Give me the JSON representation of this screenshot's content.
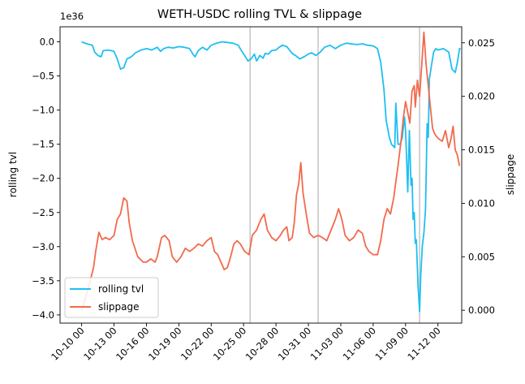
{
  "chart_data": {
    "type": "line",
    "title": "WETH-USDC rolling TVL & slippage",
    "x_tick_labels": [
      "10-10 00",
      "10-13 00",
      "10-16 00",
      "10-19 00",
      "10-22 00",
      "10-25 00",
      "10-28 00",
      "10-31 00",
      "11-03 00",
      "11-06 00",
      "11-09 00",
      "11-12 00"
    ],
    "x_tick_days": [
      0,
      3,
      6,
      9,
      12,
      15,
      18,
      21,
      24,
      27,
      30,
      33
    ],
    "xlim_days": [
      -2.0,
      35.2
    ],
    "vertical_lines_days": [
      15.6,
      21.9,
      31.3
    ],
    "left_axis": {
      "label": "rolling tvl",
      "offset_text": "1e36",
      "ylim": [
        -4.12,
        0.22
      ],
      "ticks": [
        0.0,
        -0.5,
        -1.0,
        -1.5,
        -2.0,
        -2.5,
        -3.0,
        -3.5,
        -4.0
      ],
      "tick_labels": [
        "0.0",
        "−0.5",
        "−1.0",
        "−1.5",
        "−2.0",
        "−2.5",
        "−3.0",
        "−3.5",
        "−4.0"
      ]
    },
    "right_axis": {
      "label": "slippage",
      "ylim": [
        -0.0012,
        0.0265
      ],
      "ticks": [
        0.0,
        0.005,
        0.01,
        0.015,
        0.02,
        0.025
      ],
      "tick_labels": [
        "0.000",
        "0.005",
        "0.010",
        "0.015",
        "0.020",
        "0.025"
      ]
    },
    "legend_position": "lower left",
    "series": [
      {
        "name": "rolling tvl",
        "axis": "left",
        "color": "#1ebff2",
        "points": [
          [
            0,
            0
          ],
          [
            0.5,
            -0.03
          ],
          [
            1,
            -0.05
          ],
          [
            1.2,
            -0.15
          ],
          [
            1.5,
            -0.2
          ],
          [
            1.8,
            -0.22
          ],
          [
            2,
            -0.13
          ],
          [
            2.5,
            -0.12
          ],
          [
            3,
            -0.14
          ],
          [
            3.3,
            -0.25
          ],
          [
            3.6,
            -0.4
          ],
          [
            3.9,
            -0.38
          ],
          [
            4.2,
            -0.25
          ],
          [
            4.6,
            -0.22
          ],
          [
            5,
            -0.16
          ],
          [
            5.5,
            -0.12
          ],
          [
            6,
            -0.1
          ],
          [
            6.5,
            -0.12
          ],
          [
            7,
            -0.08
          ],
          [
            7.3,
            -0.14
          ],
          [
            7.6,
            -0.1
          ],
          [
            8,
            -0.08
          ],
          [
            8.5,
            -0.09
          ],
          [
            9,
            -0.07
          ],
          [
            9.5,
            -0.08
          ],
          [
            10,
            -0.1
          ],
          [
            10.3,
            -0.18
          ],
          [
            10.5,
            -0.22
          ],
          [
            10.8,
            -0.13
          ],
          [
            11.2,
            -0.08
          ],
          [
            11.6,
            -0.12
          ],
          [
            12,
            -0.05
          ],
          [
            12.5,
            -0.02
          ],
          [
            13,
            0
          ],
          [
            13.5,
            -0.01
          ],
          [
            14,
            -0.02
          ],
          [
            14.5,
            -0.05
          ],
          [
            14.8,
            -0.13
          ],
          [
            15.1,
            -0.2
          ],
          [
            15.4,
            -0.28
          ],
          [
            15.7,
            -0.25
          ],
          [
            16,
            -0.18
          ],
          [
            16.2,
            -0.28
          ],
          [
            16.5,
            -0.2
          ],
          [
            16.8,
            -0.24
          ],
          [
            17,
            -0.17
          ],
          [
            17.3,
            -0.18
          ],
          [
            17.6,
            -0.13
          ],
          [
            18,
            -0.12
          ],
          [
            18.3,
            -0.08
          ],
          [
            18.6,
            -0.05
          ],
          [
            19,
            -0.07
          ],
          [
            19.5,
            -0.17
          ],
          [
            19.8,
            -0.2
          ],
          [
            20.2,
            -0.25
          ],
          [
            20.6,
            -0.22
          ],
          [
            21,
            -0.18
          ],
          [
            21.3,
            -0.16
          ],
          [
            21.7,
            -0.2
          ],
          [
            22.1,
            -0.15
          ],
          [
            22.5,
            -0.08
          ],
          [
            23,
            -0.05
          ],
          [
            23.5,
            -0.1
          ],
          [
            24,
            -0.05
          ],
          [
            24.5,
            -0.02
          ],
          [
            25,
            -0.03
          ],
          [
            25.5,
            -0.04
          ],
          [
            26,
            -0.03
          ],
          [
            26.5,
            -0.05
          ],
          [
            27,
            -0.06
          ],
          [
            27.4,
            -0.1
          ],
          [
            27.7,
            -0.3
          ],
          [
            28,
            -0.7
          ],
          [
            28.2,
            -1.15
          ],
          [
            28.5,
            -1.4
          ],
          [
            28.7,
            -1.5
          ],
          [
            29,
            -1.55
          ],
          [
            29.1,
            -0.9
          ],
          [
            29.3,
            -1.5
          ],
          [
            29.5,
            -1.5
          ],
          [
            29.7,
            -1.4
          ],
          [
            29.9,
            -1.1
          ],
          [
            30,
            -1.3
          ],
          [
            30.1,
            -1.7
          ],
          [
            30.2,
            -2.2
          ],
          [
            30.35,
            -1.3
          ],
          [
            30.5,
            -2.1
          ],
          [
            30.6,
            -2.0
          ],
          [
            30.7,
            -2.6
          ],
          [
            30.8,
            -2.5
          ],
          [
            30.9,
            -2.95
          ],
          [
            31.0,
            -2.9
          ],
          [
            31.15,
            -3.55
          ],
          [
            31.3,
            -3.95
          ],
          [
            31.4,
            -3.45
          ],
          [
            31.55,
            -3.0
          ],
          [
            31.7,
            -2.8
          ],
          [
            31.85,
            -2.45
          ],
          [
            32,
            -1.2
          ],
          [
            32.1,
            -1.4
          ],
          [
            32.2,
            -0.55
          ],
          [
            32.4,
            -0.35
          ],
          [
            32.6,
            -0.15
          ],
          [
            32.8,
            -0.1
          ],
          [
            33,
            -0.12
          ],
          [
            33.5,
            -0.1
          ],
          [
            34,
            -0.15
          ],
          [
            34.3,
            -0.4
          ],
          [
            34.6,
            -0.45
          ],
          [
            34.8,
            -0.3
          ],
          [
            35,
            -0.1
          ],
          [
            35.1,
            -0.1
          ]
        ]
      },
      {
        "name": "slippage",
        "axis": "right",
        "color": "#f26a4c",
        "points": [
          [
            0,
            0.0
          ],
          [
            0.6,
            0.002
          ],
          [
            1.1,
            0.004
          ],
          [
            1.3,
            0.0055
          ],
          [
            1.6,
            0.0073
          ],
          [
            1.9,
            0.0066
          ],
          [
            2.2,
            0.0068
          ],
          [
            2.6,
            0.0066
          ],
          [
            3,
            0.007
          ],
          [
            3.3,
            0.0085
          ],
          [
            3.6,
            0.009
          ],
          [
            3.9,
            0.0105
          ],
          [
            4.2,
            0.0102
          ],
          [
            4.4,
            0.0082
          ],
          [
            4.7,
            0.0065
          ],
          [
            5.2,
            0.005
          ],
          [
            5.7,
            0.0045
          ],
          [
            6,
            0.0045
          ],
          [
            6.4,
            0.0048
          ],
          [
            6.8,
            0.0045
          ],
          [
            7,
            0.005
          ],
          [
            7.4,
            0.0068
          ],
          [
            7.7,
            0.007
          ],
          [
            8.1,
            0.0065
          ],
          [
            8.4,
            0.005
          ],
          [
            8.8,
            0.0045
          ],
          [
            9.2,
            0.005
          ],
          [
            9.6,
            0.0058
          ],
          [
            10,
            0.0055
          ],
          [
            10.4,
            0.0058
          ],
          [
            10.8,
            0.0062
          ],
          [
            11.2,
            0.006
          ],
          [
            11.6,
            0.0065
          ],
          [
            12,
            0.0068
          ],
          [
            12.3,
            0.0055
          ],
          [
            12.6,
            0.0052
          ],
          [
            12.9,
            0.0045
          ],
          [
            13.2,
            0.0038
          ],
          [
            13.5,
            0.004
          ],
          [
            13.8,
            0.005
          ],
          [
            14.1,
            0.0062
          ],
          [
            14.4,
            0.0065
          ],
          [
            14.7,
            0.0062
          ],
          [
            15.1,
            0.0055
          ],
          [
            15.5,
            0.0052
          ],
          [
            15.8,
            0.007
          ],
          [
            16.2,
            0.0075
          ],
          [
            16.6,
            0.0085
          ],
          [
            16.9,
            0.009
          ],
          [
            17.2,
            0.0075
          ],
          [
            17.6,
            0.0068
          ],
          [
            18,
            0.0065
          ],
          [
            18.4,
            0.007
          ],
          [
            18.7,
            0.0075
          ],
          [
            19,
            0.0078
          ],
          [
            19.2,
            0.0065
          ],
          [
            19.5,
            0.0068
          ],
          [
            19.7,
            0.0082
          ],
          [
            19.9,
            0.0108
          ],
          [
            20.1,
            0.0118
          ],
          [
            20.3,
            0.0138
          ],
          [
            20.5,
            0.011
          ],
          [
            20.8,
            0.009
          ],
          [
            21.1,
            0.0072
          ],
          [
            21.5,
            0.0068
          ],
          [
            21.9,
            0.007
          ],
          [
            22.3,
            0.0068
          ],
          [
            22.7,
            0.0065
          ],
          [
            23.1,
            0.0075
          ],
          [
            23.5,
            0.0085
          ],
          [
            23.8,
            0.0095
          ],
          [
            24.1,
            0.0085
          ],
          [
            24.4,
            0.007
          ],
          [
            24.8,
            0.0065
          ],
          [
            25.2,
            0.0068
          ],
          [
            25.6,
            0.0075
          ],
          [
            26,
            0.0072
          ],
          [
            26.3,
            0.006
          ],
          [
            26.6,
            0.0055
          ],
          [
            27,
            0.0052
          ],
          [
            27.4,
            0.0052
          ],
          [
            27.7,
            0.0065
          ],
          [
            28,
            0.0085
          ],
          [
            28.3,
            0.0095
          ],
          [
            28.6,
            0.009
          ],
          [
            28.9,
            0.0105
          ],
          [
            29.1,
            0.012
          ],
          [
            29.3,
            0.0135
          ],
          [
            29.6,
            0.016
          ],
          [
            29.8,
            0.018
          ],
          [
            30,
            0.0195
          ],
          [
            30.2,
            0.0185
          ],
          [
            30.4,
            0.0175
          ],
          [
            30.6,
            0.0205
          ],
          [
            30.8,
            0.021
          ],
          [
            30.9,
            0.019
          ],
          [
            31.1,
            0.0215
          ],
          [
            31.3,
            0.02
          ],
          [
            31.5,
            0.023
          ],
          [
            31.7,
            0.026
          ],
          [
            31.9,
            0.023
          ],
          [
            32.1,
            0.021
          ],
          [
            32.3,
            0.019
          ],
          [
            32.5,
            0.017
          ],
          [
            32.7,
            0.0165
          ],
          [
            32.9,
            0.0162
          ],
          [
            33.1,
            0.016
          ],
          [
            33.4,
            0.0158
          ],
          [
            33.7,
            0.0168
          ],
          [
            34,
            0.0152
          ],
          [
            34.2,
            0.016
          ],
          [
            34.4,
            0.0172
          ],
          [
            34.6,
            0.015
          ],
          [
            34.8,
            0.0145
          ],
          [
            35,
            0.0135
          ]
        ]
      }
    ]
  }
}
